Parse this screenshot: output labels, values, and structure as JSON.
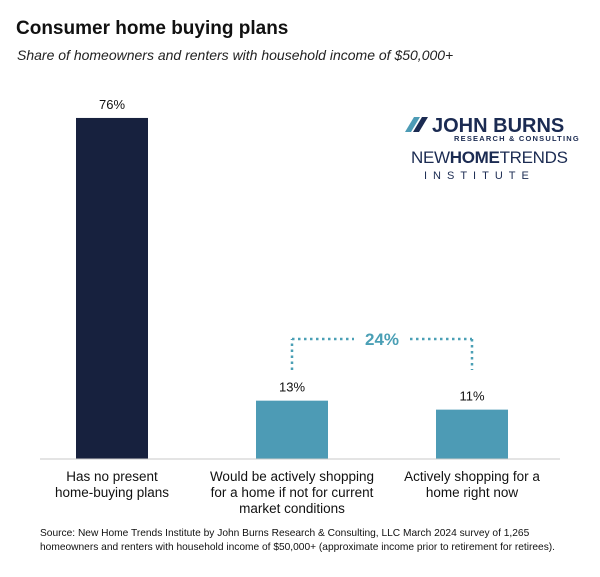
{
  "title": "Consumer home buying plans",
  "subtitle": "Share of homeowners and renters with household income of $50,000+",
  "chart_data": {
    "type": "bar",
    "title": "Consumer home buying plans",
    "subtitle": "Share of homeowners and renters with household income of $50,000+",
    "categories": [
      [
        "Has no present",
        "home-buying plans"
      ],
      [
        "Would be actively shopping",
        "for a home if not for current",
        "market conditions"
      ],
      [
        "Actively shopping for a",
        "home right now"
      ]
    ],
    "values": [
      76,
      13,
      11
    ],
    "data_labels": [
      "76%",
      "13%",
      "11%"
    ],
    "unit": "%",
    "ylim": [
      0,
      80
    ],
    "colors": [
      "#17213e",
      "#4d9bb5",
      "#4d9bb5"
    ],
    "grid": false,
    "legend": "none",
    "annotations": [
      {
        "type": "bracket",
        "spans": [
          1,
          2
        ],
        "label": "24%",
        "color": "#4a9fb5"
      }
    ]
  },
  "logo": {
    "jb_name": "JOHN BURNS",
    "jb_sub": "RESEARCH & CONSULTING",
    "nht_new": "NEW",
    "nht_home": "HOME",
    "nht_trends": "TRENDS",
    "institute": "INSTITUTE"
  },
  "source": "Source: New Home Trends Institute by John Burns Research & Consulting, LLC March 2024 survey of 1,265 homeowners and renters with household income of $50,000+ (approximate income prior to retirement for retirees)."
}
